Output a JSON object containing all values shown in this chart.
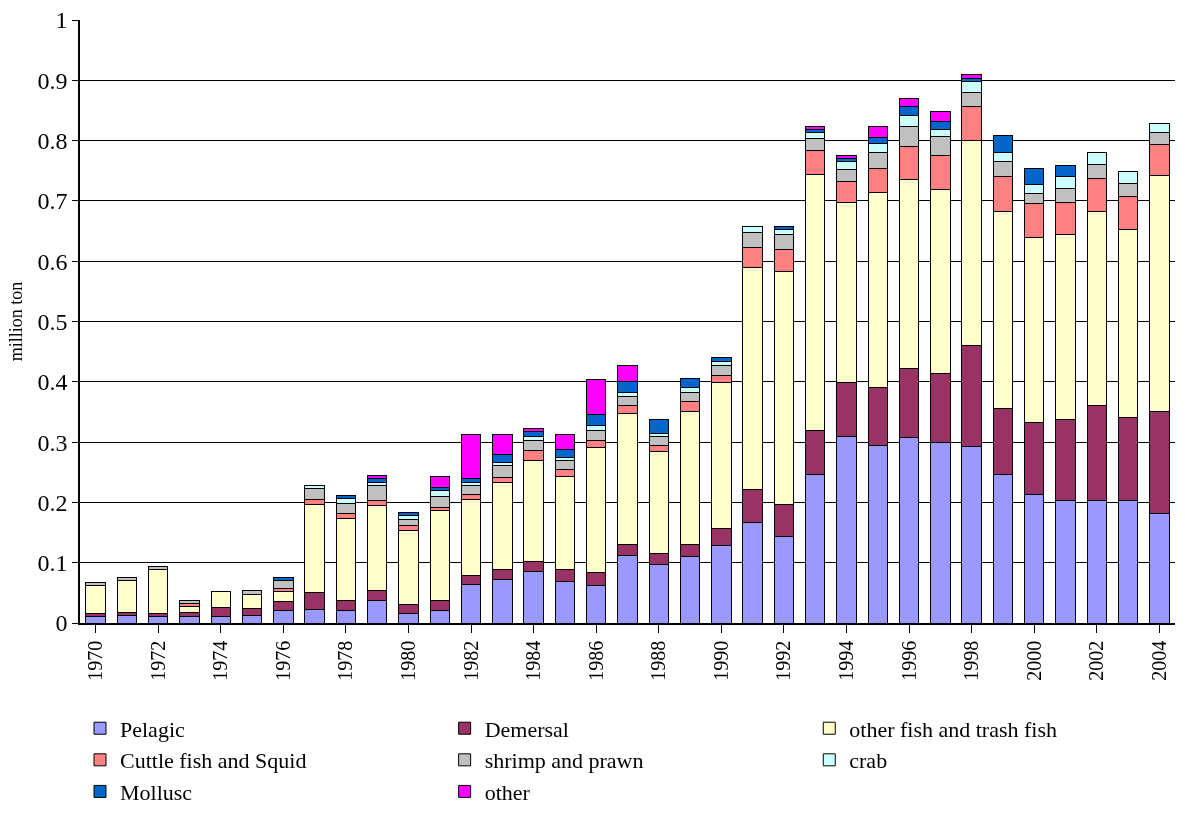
{
  "chart_data": {
    "type": "bar",
    "stacked": true,
    "ylabel": "million ton",
    "ylim": [
      0,
      1
    ],
    "yticks": [
      0,
      0.1,
      0.2,
      0.3,
      0.4,
      0.5,
      0.6,
      0.7,
      0.8,
      0.9,
      1
    ],
    "grid": "y",
    "legend": "bottom",
    "categories": [
      "1970",
      null,
      "1972",
      null,
      "1974",
      null,
      "1976",
      null,
      "1978",
      null,
      "1980",
      null,
      "1982",
      null,
      "1984",
      null,
      "1986",
      null,
      "1988",
      null,
      "1990",
      null,
      "1992",
      null,
      "1994",
      null,
      "1996",
      null,
      "1998",
      null,
      "2000",
      null,
      "2002",
      null,
      "2004"
    ],
    "series": [
      {
        "name": "Pelagic",
        "color": "#9999ff",
        "values": [
          0.01,
          0.013,
          0.01,
          0.01,
          0.01,
          0.012,
          0.02,
          0.023,
          0.021,
          0.038,
          0.016,
          0.021,
          0.064,
          0.072,
          0.085,
          0.069,
          0.062,
          0.112,
          0.097,
          0.11,
          0.128,
          0.166,
          0.143,
          0.246,
          0.31,
          0.294,
          0.307,
          0.299,
          0.292,
          0.246,
          0.213,
          0.203,
          0.203,
          0.203,
          0.182
        ]
      },
      {
        "name": "Demersal",
        "color": "#993366",
        "values": [
          0.005,
          0.005,
          0.006,
          0.008,
          0.015,
          0.012,
          0.015,
          0.028,
          0.017,
          0.016,
          0.015,
          0.017,
          0.015,
          0.017,
          0.017,
          0.019,
          0.021,
          0.019,
          0.018,
          0.021,
          0.028,
          0.056,
          0.054,
          0.073,
          0.089,
          0.097,
          0.115,
          0.115,
          0.168,
          0.11,
          0.119,
          0.134,
          0.158,
          0.137,
          0.169
        ]
      },
      {
        "name": "other fish and trash fish",
        "color": "#ffffcc",
        "values": [
          0.047,
          0.053,
          0.072,
          0.01,
          0.027,
          0.024,
          0.018,
          0.146,
          0.136,
          0.141,
          0.123,
          0.148,
          0.126,
          0.144,
          0.167,
          0.155,
          0.208,
          0.216,
          0.169,
          0.219,
          0.243,
          0.368,
          0.386,
          0.425,
          0.299,
          0.323,
          0.314,
          0.305,
          0.34,
          0.327,
          0.307,
          0.308,
          0.321,
          0.312,
          0.391
        ]
      },
      {
        "name": "Cuttle fish and Squid",
        "color": "#ff8080",
        "values": [
          null,
          null,
          null,
          0.005,
          null,
          null,
          0.005,
          0.007,
          0.007,
          0.008,
          0.007,
          0.006,
          0.008,
          0.008,
          0.017,
          0.012,
          0.012,
          0.014,
          0.01,
          0.018,
          0.012,
          0.032,
          0.036,
          0.039,
          0.034,
          0.04,
          0.055,
          0.057,
          0.057,
          0.058,
          0.056,
          0.053,
          0.055,
          0.056,
          0.051
        ]
      },
      {
        "name": "shrimp and prawn",
        "color": "#c0c0c0",
        "values": [
          0.005,
          0.005,
          0.005,
          0.005,
          null,
          0.006,
          0.012,
          0.019,
          0.018,
          0.025,
          0.01,
          0.018,
          0.015,
          0.02,
          0.016,
          0.014,
          0.017,
          0.015,
          0.016,
          0.014,
          0.016,
          0.025,
          0.025,
          0.02,
          0.02,
          0.026,
          0.032,
          0.03,
          0.023,
          0.024,
          0.018,
          0.023,
          0.023,
          0.021,
          0.021
        ]
      },
      {
        "name": "crab",
        "color": "#ccffff",
        "values": [
          null,
          null,
          null,
          null,
          null,
          null,
          null,
          0.005,
          0.008,
          0.005,
          0.008,
          0.01,
          0.005,
          0.005,
          0.008,
          0.006,
          0.008,
          0.006,
          0.005,
          0.009,
          0.006,
          0.011,
          0.008,
          0.011,
          0.013,
          0.015,
          0.018,
          0.013,
          0.018,
          0.015,
          0.015,
          0.019,
          0.02,
          0.02,
          0.015
        ]
      },
      {
        "name": "Mollusc",
        "color": "#0066cc",
        "values": [
          null,
          null,
          null,
          null,
          null,
          null,
          0.005,
          null,
          0.005,
          0.007,
          0.005,
          0.005,
          0.007,
          0.014,
          0.008,
          0.012,
          0.017,
          0.018,
          0.022,
          0.015,
          0.008,
          null,
          0.005,
          0.005,
          0.005,
          0.01,
          0.016,
          0.013,
          0.005,
          0.028,
          0.026,
          0.019,
          null,
          null,
          null
        ]
      },
      {
        "name": "other",
        "color": "#ff00ff",
        "values": [
          null,
          null,
          null,
          null,
          null,
          null,
          null,
          null,
          null,
          0.005,
          null,
          0.018,
          0.072,
          0.033,
          0.005,
          0.025,
          0.059,
          0.027,
          null,
          null,
          null,
          null,
          null,
          0.005,
          0.006,
          0.018,
          0.012,
          0.017,
          0.007,
          null,
          null,
          null,
          null,
          null,
          null
        ]
      }
    ]
  }
}
